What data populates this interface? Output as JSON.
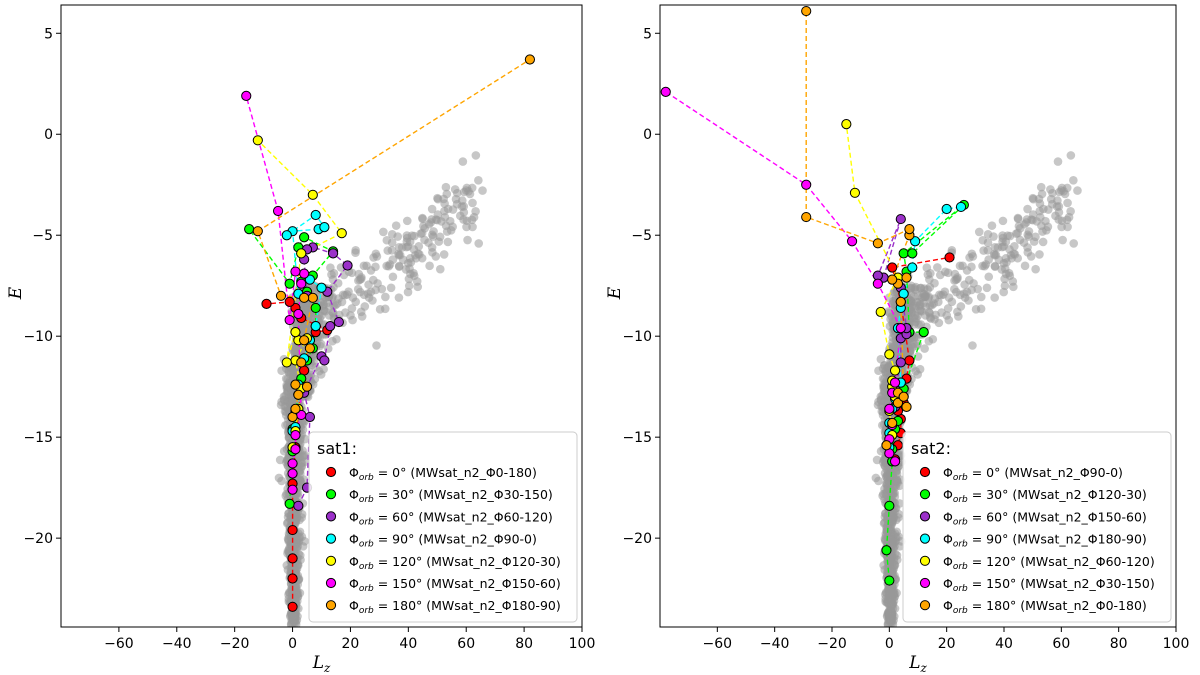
{
  "chart_data": [
    {
      "type": "scatter",
      "id": "left",
      "title": "",
      "xlabel": "L_z",
      "ylabel": "E",
      "xlim": [
        -80,
        100
      ],
      "ylim": [
        -24.4,
        6.4
      ],
      "xticks": [
        -60,
        -40,
        -20,
        0,
        20,
        40,
        60,
        80,
        100
      ],
      "yticks": [
        -20,
        -15,
        -10,
        -5,
        0,
        5
      ],
      "legend": {
        "title": "sat1:",
        "position": "lower-right",
        "entries": [
          {
            "label": "Φorb = 0° (MWsat_n2_Φ0-180)",
            "color": "#ff0000"
          },
          {
            "label": "Φorb = 30° (MWsat_n2_Φ30-150)",
            "color": "#00ff00"
          },
          {
            "label": "Φorb = 60° (MWsat_n2_Φ60-120)",
            "color": "#9b30c9"
          },
          {
            "label": "Φorb = 90° (MWsat_n2_Φ90-0)",
            "color": "#00ffff"
          },
          {
            "label": "Φorb = 120° (MWsat_n2_Φ120-30)",
            "color": "#ffff00"
          },
          {
            "label": "Φorb = 150° (MWsat_n2_Φ150-60)",
            "color": "#ff00ff"
          },
          {
            "label": "Φorb = 180° (MWsat_n2_Φ180-90)",
            "color": "#ffa500"
          }
        ]
      },
      "background_color": "#999999",
      "series": [
        {
          "name": "0",
          "color": "#ff0000",
          "x": [
            0,
            0,
            0,
            0,
            0,
            1,
            2,
            3,
            4,
            5,
            6,
            8,
            12,
            3,
            1,
            -1,
            -9
          ],
          "y": [
            -23.4,
            -22,
            -21,
            -19.6,
            -17.3,
            -15.5,
            -13.8,
            -12.6,
            -11.7,
            -11.2,
            -10.2,
            -9.8,
            -9.7,
            -9.1,
            -8.6,
            -8.3,
            -8.4
          ]
        },
        {
          "name": "30",
          "color": "#00ff00",
          "x": [
            -1,
            0,
            0,
            1,
            2,
            3,
            5,
            7,
            8,
            8,
            5,
            3,
            7,
            14,
            4,
            2,
            -1,
            -15
          ],
          "y": [
            -18.3,
            -15.7,
            -14.6,
            -13.7,
            -12.9,
            -12.1,
            -11.2,
            -10.6,
            -9.5,
            -8.6,
            -7.8,
            -7.3,
            -7,
            -5.8,
            -5.1,
            -5.6,
            -7.4,
            -4.7
          ]
        },
        {
          "name": "60",
          "color": "#9b30c9",
          "x": [
            2,
            5,
            6,
            4,
            10,
            11,
            13,
            16,
            12,
            19,
            14,
            7,
            5,
            4,
            5
          ],
          "y": [
            -18.4,
            -17.5,
            -14,
            -12.8,
            -11,
            -11.2,
            -9.5,
            -9.3,
            -7.8,
            -6.5,
            -5.9,
            -5.6,
            -5.7,
            -6.2,
            -8
          ]
        },
        {
          "name": "90",
          "color": "#00ffff",
          "x": [
            0,
            1,
            2,
            2,
            4,
            6,
            8,
            10,
            6,
            2,
            0,
            9,
            11,
            8,
            -2
          ],
          "y": [
            -14.7,
            -14.5,
            -13.8,
            -12.4,
            -11.1,
            -10.2,
            -9.5,
            -7.6,
            -7.2,
            -7.9,
            -4.8,
            -4.7,
            -4.6,
            -4,
            -5
          ]
        },
        {
          "name": "120",
          "color": "#ffff00",
          "x": [
            0,
            1,
            2,
            3,
            1,
            5,
            2,
            1,
            -2,
            3,
            17,
            7,
            -12
          ],
          "y": [
            -15.5,
            -14.7,
            -13.6,
            -12.6,
            -11.2,
            -10.1,
            -10.2,
            -9.8,
            -11.3,
            -5.9,
            -4.9,
            -3,
            -0.3
          ]
        },
        {
          "name": "150",
          "color": "#ff00ff",
          "x": [
            0,
            0,
            0,
            1,
            1,
            3,
            2,
            3,
            4,
            1,
            -1,
            -5,
            -16
          ],
          "y": [
            -17.6,
            -16.8,
            -16.3,
            -15.6,
            -14.9,
            -13.9,
            -8.9,
            -7.4,
            -6.9,
            -6.8,
            -9.2,
            -3.8,
            1.9
          ]
        },
        {
          "name": "180",
          "color": "#ffa500",
          "x": [
            0,
            1,
            2,
            1,
            5,
            3,
            6,
            4,
            7,
            4,
            -4,
            -12,
            82
          ],
          "y": [
            -14,
            -13.6,
            -12.9,
            -12.4,
            -12.5,
            -11.3,
            -10.6,
            -10.2,
            -8.1,
            -8.1,
            -8,
            -4.8,
            3.7
          ]
        }
      ]
    },
    {
      "type": "scatter",
      "id": "right",
      "title": "",
      "xlabel": "L_z",
      "ylabel": "E",
      "xlim": [
        -80,
        100
      ],
      "ylim": [
        -24.4,
        6.4
      ],
      "xticks": [
        -60,
        -40,
        -20,
        0,
        20,
        40,
        60,
        80,
        100
      ],
      "yticks": [
        -20,
        -15,
        -10,
        -5,
        0,
        5
      ],
      "legend": {
        "title": "sat2:",
        "position": "lower-right",
        "entries": [
          {
            "label": "Φorb = 0° (MWsat_n2_Φ90-0)",
            "color": "#ff0000"
          },
          {
            "label": "Φorb = 30° (MWsat_n2_Φ120-30)",
            "color": "#00ff00"
          },
          {
            "label": "Φorb = 60° (MWsat_n2_Φ150-60)",
            "color": "#9b30c9"
          },
          {
            "label": "Φorb = 90° (MWsat_n2_Φ180-90)",
            "color": "#00ffff"
          },
          {
            "label": "Φorb = 120° (MWsat_n2_Φ60-120)",
            "color": "#ffff00"
          },
          {
            "label": "Φorb = 150° (MWsat_n2_Φ30-150)",
            "color": "#ff00ff"
          },
          {
            "label": "Φorb = 180° (MWsat_n2_Φ0-180)",
            "color": "#ffa500"
          }
        ]
      },
      "background_color": "#999999",
      "series": [
        {
          "name": "0",
          "color": "#ff0000",
          "x": [
            2,
            3,
            4,
            4,
            3,
            5,
            4,
            6,
            7,
            4,
            1,
            21
          ],
          "y": [
            -16.1,
            -15.4,
            -14.8,
            -14.1,
            -13.7,
            -13.3,
            -12.6,
            -12.1,
            -11.2,
            -8.3,
            -6.6,
            -6.1
          ]
        },
        {
          "name": "30",
          "color": "#00ff00",
          "x": [
            0,
            -1,
            0,
            1,
            1,
            2,
            3,
            5,
            12,
            7,
            6,
            5,
            26,
            8
          ],
          "y": [
            -22.1,
            -20.6,
            -18.4,
            -16.2,
            -15.6,
            -14.6,
            -14.2,
            -12.6,
            -9.8,
            -9.8,
            -6.8,
            -5.9,
            -3.5,
            -5.9
          ]
        },
        {
          "name": "60",
          "color": "#9b30c9",
          "x": [
            2,
            3,
            2,
            4,
            4,
            6,
            6,
            4,
            -2,
            4,
            -4
          ],
          "y": [
            -13.5,
            -12.9,
            -12.6,
            -11.3,
            -10.1,
            -9.9,
            -9.6,
            -7.6,
            -7.1,
            -4.2,
            -7
          ]
        },
        {
          "name": "90",
          "color": "#00ffff",
          "x": [
            0,
            0,
            0,
            1,
            2,
            4,
            3,
            4,
            5,
            8,
            9,
            20,
            25
          ],
          "y": [
            -15.5,
            -14.8,
            -14.3,
            -13.6,
            -13.1,
            -12.3,
            -9.6,
            -8.6,
            -7.9,
            -6.6,
            -5.3,
            -3.7,
            -3.6
          ]
        },
        {
          "name": "120",
          "color": "#ffff00",
          "x": [
            1,
            0,
            2,
            1,
            1,
            2,
            0,
            -3,
            3,
            -12,
            -15
          ],
          "y": [
            -14.9,
            -13.7,
            -13,
            -12.5,
            -12.2,
            -11.7,
            -10.9,
            -8.8,
            -7.1,
            -2.9,
            0.5
          ]
        },
        {
          "name": "150",
          "color": "#ff00ff",
          "x": [
            2,
            0,
            0,
            1,
            0,
            1,
            2,
            4,
            -4,
            -13,
            -29,
            -78
          ],
          "y": [
            -16.2,
            -15.8,
            -15.1,
            -14.4,
            -13.6,
            -12.8,
            -12.3,
            -9.6,
            -7.4,
            -5.3,
            -2.5,
            2.1
          ]
        },
        {
          "name": "180",
          "color": "#ffa500",
          "x": [
            -1,
            1,
            3,
            3,
            6,
            5,
            4,
            3,
            6,
            1,
            7,
            7,
            -4,
            -29,
            -29
          ],
          "y": [
            -15.4,
            -14.3,
            -13.3,
            -12.8,
            -13.5,
            -13,
            -8.3,
            -7.4,
            -7.1,
            -7.2,
            -5,
            -4.7,
            -5.4,
            -4.1,
            6.1
          ]
        }
      ]
    }
  ]
}
